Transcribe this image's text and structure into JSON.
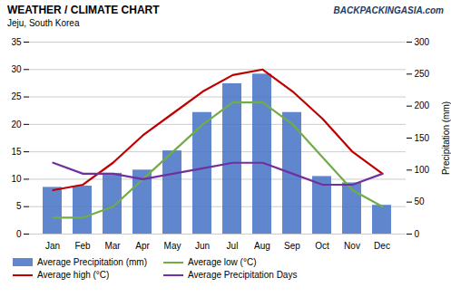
{
  "chart_data": {
    "type": "bar",
    "title": "WEATHER / CLIMATE CHART",
    "subtitle": "Jeju, South Korea",
    "annotations": [
      "BACKPACKINGASIA.com"
    ],
    "categories": [
      "Jan",
      "Feb",
      "Mar",
      "Apr",
      "May",
      "Jun",
      "Jul",
      "Aug",
      "Sep",
      "Oct",
      "Nov",
      "Dec"
    ],
    "series": [
      {
        "name": "Average Precipitation (mm)",
        "type": "bar",
        "axis": "y2",
        "color": "#4472C4",
        "values": [
          73,
          75,
          95,
          100,
          130,
          190,
          235,
          250,
          190,
          90,
          80,
          45
        ]
      },
      {
        "name": "Average low (°C)",
        "type": "line",
        "color": "#70AD47",
        "values": [
          3,
          3,
          5,
          10,
          15,
          20,
          24,
          24,
          20,
          14,
          8,
          5
        ]
      },
      {
        "name": "Average high (°C)",
        "type": "line",
        "color": "#C00000",
        "values": [
          8,
          9,
          13,
          18,
          22,
          26,
          29,
          30,
          26,
          21,
          15,
          11
        ]
      },
      {
        "name": "Average Precipitation Days",
        "type": "line",
        "color": "#7030A0",
        "values": [
          13,
          11,
          11,
          10,
          11,
          12,
          13,
          13,
          11,
          9,
          9,
          11
        ]
      }
    ],
    "ylim": [
      0,
      35
    ],
    "yticks": [
      0,
      5,
      10,
      15,
      20,
      25,
      30,
      35
    ],
    "y2lim": [
      0,
      300
    ],
    "y2ticks": [
      0,
      50,
      100,
      150,
      200,
      250,
      300
    ],
    "y2label": "Precipitation (mm)",
    "grid": true,
    "legend": "bottom"
  }
}
